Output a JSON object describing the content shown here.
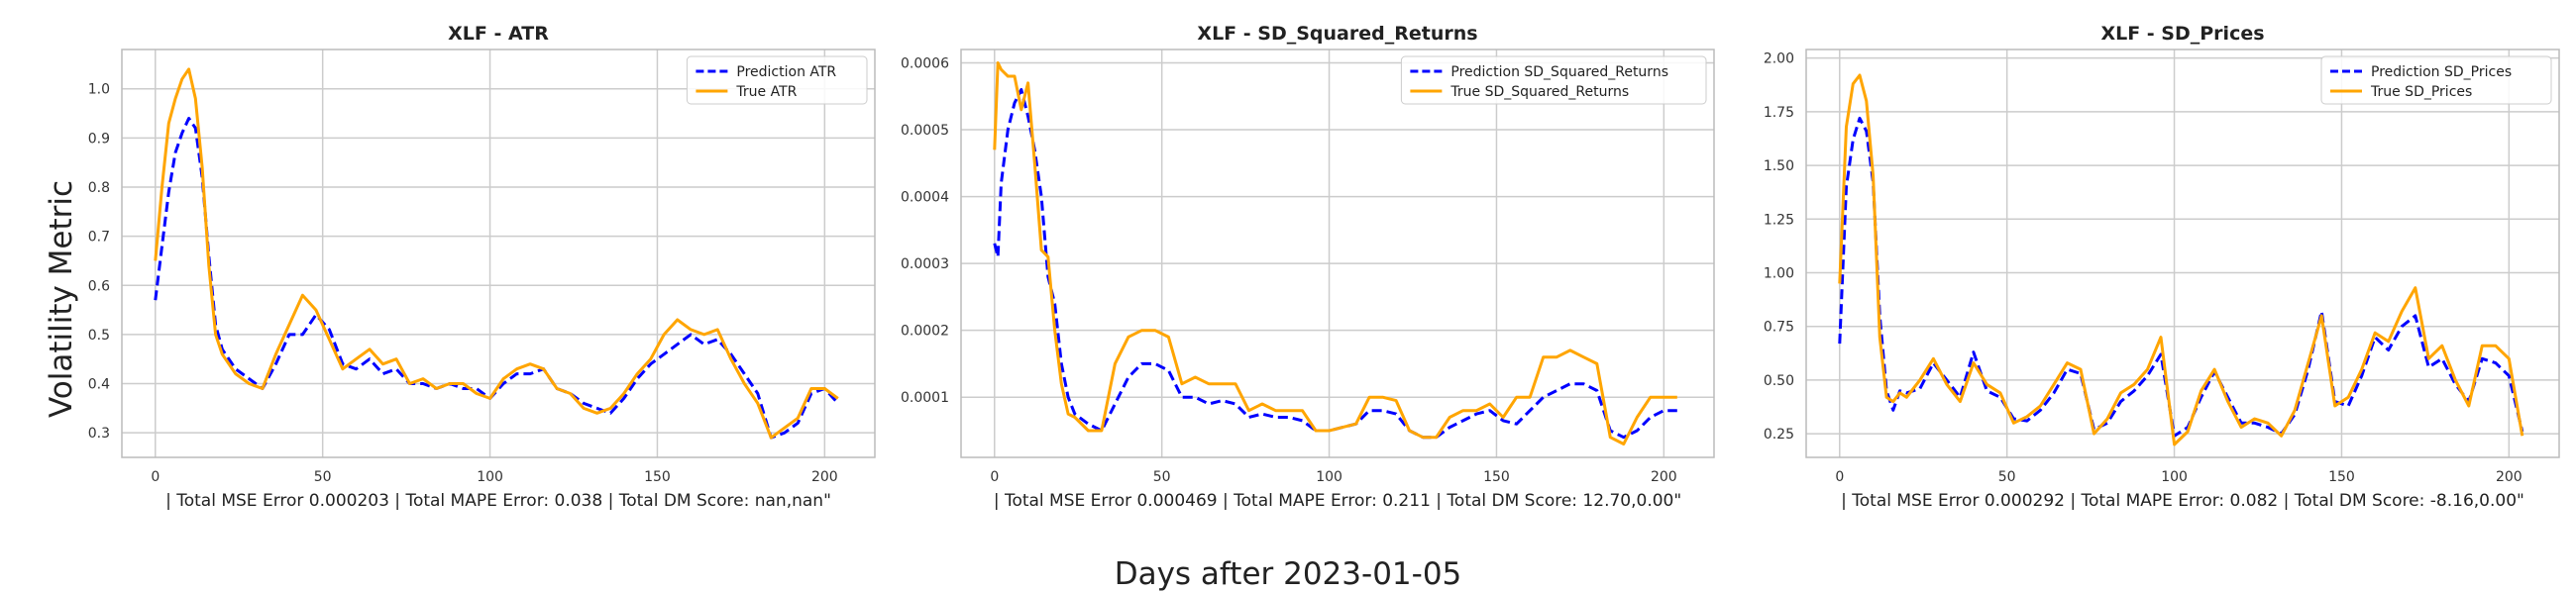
{
  "figure": {
    "ylabel": "Volatility Metric",
    "xlabel": "Days after 2023-01-05"
  },
  "colors": {
    "prediction": "#0000ff",
    "true": "#ffa500",
    "grid": "#cccccc",
    "frame": "#bbbbbb"
  },
  "chart_data": [
    {
      "type": "line",
      "title": "XLF - ATR",
      "subtitle": "| Total MSE Error 0.000203 | Total MAPE Error: 0.038 | Total DM Score: nan,nan\"",
      "xlim": [
        -10,
        215
      ],
      "ylim": [
        0.25,
        1.08
      ],
      "xticks": [
        0,
        50,
        100,
        150,
        200
      ],
      "yticks": [
        0.3,
        0.4,
        0.5,
        0.6,
        0.7,
        0.8,
        0.9,
        1.0
      ],
      "yticklabels": [
        "0.3",
        "0.4",
        "0.5",
        "0.6",
        "0.7",
        "0.8",
        "0.9",
        "1.0"
      ],
      "legend_position": "top-right",
      "series": [
        {
          "name": "Prediction ATR",
          "style": "dashed",
          "x": [
            0,
            2,
            4,
            6,
            8,
            10,
            12,
            14,
            16,
            18,
            20,
            24,
            28,
            32,
            36,
            40,
            44,
            48,
            52,
            56,
            60,
            64,
            68,
            72,
            76,
            80,
            84,
            88,
            92,
            96,
            100,
            104,
            108,
            112,
            116,
            120,
            124,
            128,
            132,
            136,
            140,
            144,
            148,
            152,
            156,
            160,
            164,
            168,
            172,
            176,
            180,
            184,
            188,
            192,
            196,
            200,
            204
          ],
          "y": [
            0.57,
            0.68,
            0.79,
            0.87,
            0.91,
            0.94,
            0.92,
            0.82,
            0.66,
            0.52,
            0.47,
            0.43,
            0.41,
            0.39,
            0.44,
            0.5,
            0.5,
            0.54,
            0.51,
            0.44,
            0.43,
            0.45,
            0.42,
            0.43,
            0.4,
            0.4,
            0.39,
            0.4,
            0.39,
            0.39,
            0.37,
            0.4,
            0.42,
            0.42,
            0.43,
            0.39,
            0.38,
            0.36,
            0.35,
            0.34,
            0.37,
            0.41,
            0.44,
            0.46,
            0.48,
            0.5,
            0.48,
            0.49,
            0.46,
            0.42,
            0.38,
            0.29,
            0.3,
            0.32,
            0.38,
            0.39,
            0.36
          ]
        },
        {
          "name": "True ATR",
          "style": "solid",
          "x": [
            0,
            2,
            4,
            6,
            8,
            10,
            12,
            14,
            16,
            18,
            20,
            24,
            28,
            32,
            36,
            40,
            44,
            48,
            52,
            56,
            60,
            64,
            68,
            72,
            76,
            80,
            84,
            88,
            92,
            96,
            100,
            104,
            108,
            112,
            116,
            120,
            124,
            128,
            132,
            136,
            140,
            144,
            148,
            152,
            156,
            160,
            164,
            168,
            172,
            176,
            180,
            184,
            188,
            192,
            196,
            200,
            204
          ],
          "y": [
            0.65,
            0.8,
            0.93,
            0.98,
            1.02,
            1.04,
            0.98,
            0.84,
            0.64,
            0.5,
            0.46,
            0.42,
            0.4,
            0.39,
            0.46,
            0.52,
            0.58,
            0.55,
            0.49,
            0.43,
            0.45,
            0.47,
            0.44,
            0.45,
            0.4,
            0.41,
            0.39,
            0.4,
            0.4,
            0.38,
            0.37,
            0.41,
            0.43,
            0.44,
            0.43,
            0.39,
            0.38,
            0.35,
            0.34,
            0.35,
            0.38,
            0.42,
            0.45,
            0.5,
            0.53,
            0.51,
            0.5,
            0.51,
            0.45,
            0.4,
            0.36,
            0.29,
            0.31,
            0.33,
            0.39,
            0.39,
            0.37
          ]
        }
      ]
    },
    {
      "type": "line",
      "title": "XLF - SD_Squared_Returns",
      "subtitle": "| Total MSE Error 0.000469 | Total MAPE Error: 0.211 | Total DM Score: 12.70,0.00\"",
      "xlim": [
        -10,
        215
      ],
      "ylim": [
        1e-05,
        0.00062
      ],
      "xticks": [
        0,
        50,
        100,
        150,
        200
      ],
      "yticks": [
        0.0001,
        0.0002,
        0.0003,
        0.0004,
        0.0005,
        0.0006
      ],
      "yticklabels": [
        "0.0001",
        "0.0002",
        "0.0003",
        "0.0004",
        "0.0005",
        "0.0006"
      ],
      "legend_position": "top-right",
      "series": [
        {
          "name": "Prediction SD_Squared_Returns",
          "style": "dashed",
          "x": [
            0,
            1,
            2,
            4,
            6,
            8,
            10,
            12,
            14,
            16,
            18,
            20,
            22,
            24,
            28,
            32,
            36,
            40,
            44,
            48,
            52,
            56,
            60,
            64,
            68,
            72,
            76,
            80,
            84,
            88,
            92,
            96,
            100,
            104,
            108,
            112,
            116,
            120,
            124,
            128,
            132,
            136,
            140,
            144,
            148,
            152,
            156,
            160,
            164,
            168,
            172,
            176,
            180,
            184,
            188,
            192,
            196,
            200,
            204
          ],
          "y": [
            0.00033,
            0.00031,
            0.00042,
            0.0005,
            0.00054,
            0.00056,
            0.00052,
            0.00047,
            0.0004,
            0.00028,
            0.00024,
            0.00015,
            0.0001,
            7.5e-05,
            6e-05,
            5e-05,
            9e-05,
            0.00013,
            0.00015,
            0.00015,
            0.00014,
            0.0001,
            0.0001,
            9e-05,
            9.5e-05,
            9e-05,
            7e-05,
            7.5e-05,
            7e-05,
            7e-05,
            6.5e-05,
            5e-05,
            5e-05,
            5.5e-05,
            6e-05,
            8e-05,
            8e-05,
            7.5e-05,
            5e-05,
            4e-05,
            4e-05,
            5.5e-05,
            6.5e-05,
            7.5e-05,
            8e-05,
            6.5e-05,
            6e-05,
            8e-05,
            0.0001,
            0.00011,
            0.00012,
            0.00012,
            0.00011,
            5e-05,
            4e-05,
            5e-05,
            7e-05,
            8e-05,
            8e-05
          ]
        },
        {
          "name": "True SD_Squared_Returns",
          "style": "solid",
          "x": [
            0,
            1,
            2,
            4,
            6,
            8,
            10,
            12,
            14,
            16,
            18,
            20,
            22,
            24,
            28,
            32,
            36,
            40,
            44,
            48,
            52,
            56,
            60,
            64,
            68,
            72,
            76,
            80,
            84,
            88,
            92,
            96,
            100,
            104,
            108,
            112,
            116,
            120,
            124,
            128,
            132,
            136,
            140,
            144,
            148,
            152,
            156,
            160,
            164,
            168,
            172,
            176,
            180,
            184,
            188,
            192,
            196,
            200,
            204
          ],
          "y": [
            0.00047,
            0.0006,
            0.00059,
            0.00058,
            0.00058,
            0.00053,
            0.00057,
            0.00045,
            0.00032,
            0.00031,
            0.0002,
            0.00012,
            7.5e-05,
            7e-05,
            5e-05,
            5e-05,
            0.00015,
            0.00019,
            0.0002,
            0.0002,
            0.00019,
            0.00012,
            0.00013,
            0.00012,
            0.00012,
            0.00012,
            8e-05,
            9e-05,
            8e-05,
            8e-05,
            8e-05,
            5e-05,
            5e-05,
            5.5e-05,
            6e-05,
            0.0001,
            0.0001,
            9.5e-05,
            5e-05,
            4e-05,
            4e-05,
            7e-05,
            8e-05,
            8e-05,
            9e-05,
            7e-05,
            0.0001,
            0.0001,
            0.00016,
            0.00016,
            0.00017,
            0.00016,
            0.00015,
            4e-05,
            3e-05,
            7e-05,
            0.0001,
            0.0001,
            0.0001
          ]
        }
      ]
    },
    {
      "type": "line",
      "title": "XLF - SD_Prices",
      "subtitle": "| Total MSE Error 0.000292 | Total MAPE Error: 0.082 | Total DM Score: -8.16,0.00\"",
      "xlim": [
        -10,
        215
      ],
      "ylim": [
        0.14,
        2.04
      ],
      "xticks": [
        0,
        50,
        100,
        150,
        200
      ],
      "yticks": [
        0.25,
        0.5,
        0.75,
        1.0,
        1.25,
        1.5,
        1.75,
        2.0
      ],
      "yticklabels": [
        "0.25",
        "0.50",
        "0.75",
        "1.00",
        "1.25",
        "1.50",
        "1.75",
        "2.00"
      ],
      "legend_position": "top-right",
      "series": [
        {
          "name": "Prediction SD_Prices",
          "style": "dashed",
          "x": [
            0,
            2,
            4,
            6,
            8,
            10,
            12,
            14,
            16,
            18,
            20,
            24,
            28,
            32,
            36,
            40,
            44,
            48,
            52,
            56,
            60,
            64,
            68,
            72,
            76,
            80,
            84,
            88,
            92,
            96,
            100,
            104,
            108,
            112,
            116,
            120,
            124,
            128,
            132,
            136,
            140,
            144,
            148,
            152,
            156,
            160,
            164,
            168,
            172,
            176,
            180,
            184,
            188,
            192,
            196,
            200,
            204
          ],
          "y": [
            0.67,
            1.4,
            1.62,
            1.72,
            1.66,
            1.42,
            0.8,
            0.45,
            0.36,
            0.45,
            0.44,
            0.46,
            0.58,
            0.5,
            0.42,
            0.63,
            0.45,
            0.42,
            0.32,
            0.31,
            0.36,
            0.44,
            0.55,
            0.53,
            0.27,
            0.3,
            0.4,
            0.45,
            0.52,
            0.62,
            0.24,
            0.28,
            0.42,
            0.54,
            0.42,
            0.3,
            0.3,
            0.28,
            0.25,
            0.34,
            0.55,
            0.82,
            0.4,
            0.38,
            0.52,
            0.7,
            0.64,
            0.75,
            0.8,
            0.56,
            0.6,
            0.48,
            0.4,
            0.6,
            0.58,
            0.52,
            0.26
          ]
        },
        {
          "name": "True SD_Prices",
          "style": "solid",
          "x": [
            0,
            2,
            4,
            6,
            8,
            10,
            12,
            14,
            16,
            18,
            20,
            24,
            28,
            32,
            36,
            40,
            44,
            48,
            52,
            56,
            60,
            64,
            68,
            72,
            76,
            80,
            84,
            88,
            92,
            96,
            100,
            104,
            108,
            112,
            116,
            120,
            124,
            128,
            132,
            136,
            140,
            144,
            148,
            152,
            156,
            160,
            164,
            168,
            172,
            176,
            180,
            184,
            188,
            192,
            196,
            200,
            204
          ],
          "y": [
            0.95,
            1.68,
            1.88,
            1.92,
            1.8,
            1.45,
            0.7,
            0.42,
            0.4,
            0.44,
            0.42,
            0.5,
            0.6,
            0.48,
            0.4,
            0.58,
            0.48,
            0.44,
            0.3,
            0.33,
            0.38,
            0.48,
            0.58,
            0.55,
            0.25,
            0.32,
            0.44,
            0.48,
            0.55,
            0.7,
            0.2,
            0.26,
            0.45,
            0.55,
            0.4,
            0.28,
            0.32,
            0.3,
            0.24,
            0.36,
            0.58,
            0.8,
            0.38,
            0.42,
            0.55,
            0.72,
            0.68,
            0.82,
            0.93,
            0.6,
            0.66,
            0.5,
            0.38,
            0.66,
            0.66,
            0.6,
            0.24
          ]
        }
      ]
    }
  ]
}
